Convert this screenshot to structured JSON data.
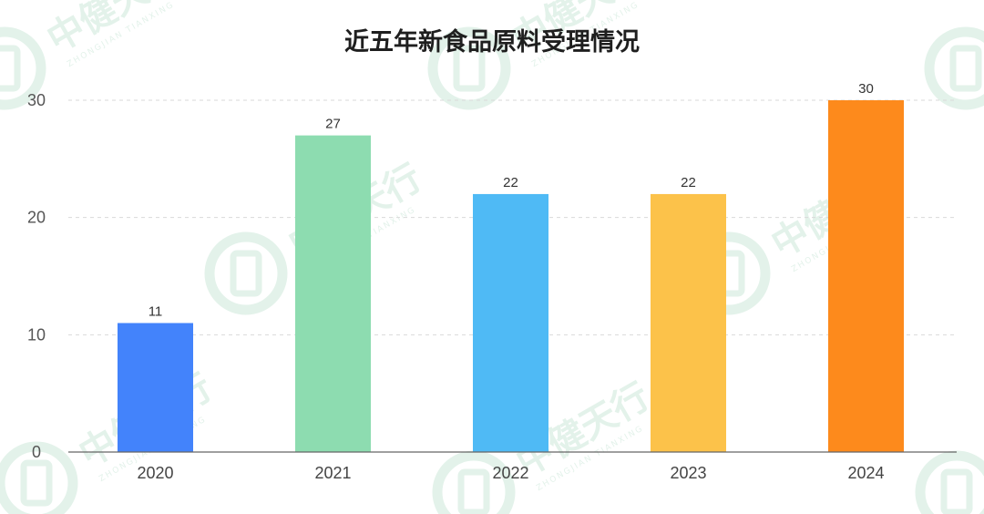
{
  "chart_data": {
    "type": "bar",
    "title": "近五年新食品原料受理情况",
    "categories": [
      "2020",
      "2021",
      "2022",
      "2023",
      "2024"
    ],
    "values": [
      11,
      27,
      22,
      22,
      30
    ],
    "colors": [
      "#4383fb",
      "#8ddcb0",
      "#4fbaf5",
      "#fcc24a",
      "#fd8a1c"
    ],
    "ylim": [
      0,
      30
    ],
    "yticks": [
      0,
      10,
      20,
      30
    ],
    "grid": true,
    "data_labels": true,
    "legend": "none",
    "watermark": {
      "brand": "中健天行",
      "romanized": "ZHONGJIAN TIANXING",
      "color": "#e3f2ea"
    }
  }
}
